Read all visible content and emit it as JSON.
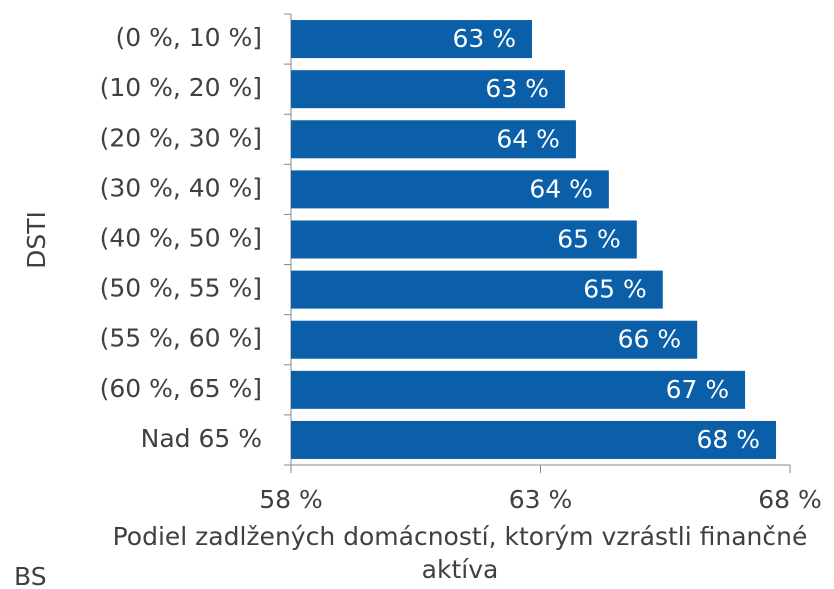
{
  "chart_data": {
    "type": "bar",
    "orientation": "horizontal",
    "y_label": "DSTI",
    "x_label": "Podiel zadlžených domácností, ktorým vzrástli finančné aktíva",
    "categories": [
      "(0 %, 10 %]",
      "(10 %, 20 %]",
      "(20 %, 30 %]",
      "(30 %, 40 %]",
      "(40 %, 50 %]",
      "(50 %, 55 %]",
      "(55 %, 60 %]",
      "(60 %, 65 %]",
      "Nad 65 %"
    ],
    "values": [
      62.83,
      63.49,
      63.71,
      64.37,
      64.93,
      65.45,
      66.14,
      67.1,
      67.72
    ],
    "value_labels": [
      "63 %",
      "63 %",
      "64 %",
      "64 %",
      "65 %",
      "65 %",
      "66 %",
      "67 %",
      "68 %"
    ],
    "color": "#0a5fa8",
    "xlim": [
      58,
      68
    ],
    "xticks": [
      {
        "value": 58,
        "label": "58 %"
      },
      {
        "value": 63,
        "label": "63 %"
      },
      {
        "value": 68,
        "label": "68 %"
      }
    ],
    "source": "BS"
  }
}
